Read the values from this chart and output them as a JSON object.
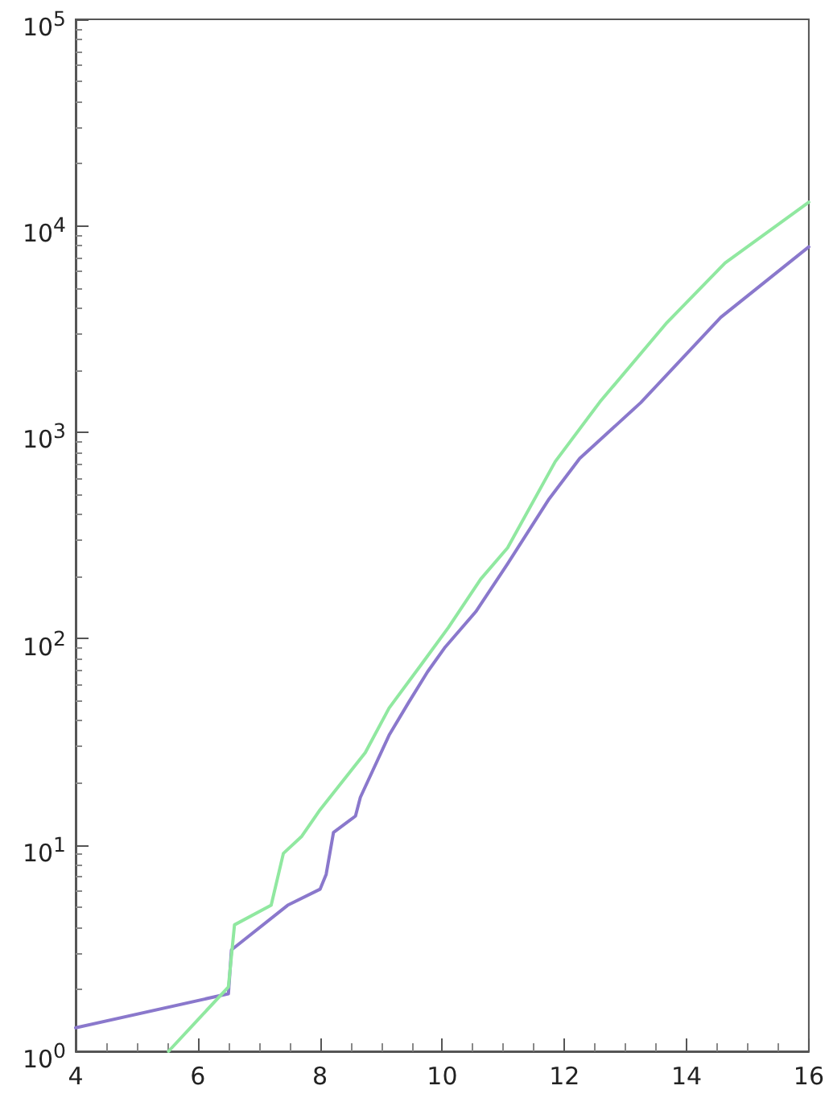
{
  "chart_data": {
    "type": "line",
    "log": "y",
    "grid": false,
    "marker": "none",
    "line_style": "solid",
    "xlim": [
      4,
      16
    ],
    "xticks": [
      4,
      6,
      8,
      10,
      12,
      14,
      16
    ],
    "ylim": [
      1,
      100000
    ],
    "yticks": [
      {
        "value": 1,
        "label": "10$^{0}$"
      },
      {
        "value": 10,
        "label": "10$^{1}$"
      },
      {
        "value": 100,
        "label": "10$^{2}$"
      },
      {
        "value": 1000,
        "label": "10$^{3}$"
      },
      {
        "value": 10000,
        "label": "10$^{4}$"
      },
      {
        "value": 100000,
        "label": "10$^{5}$"
      }
    ],
    "series": [
      {
        "color": "#8a78cc",
        "x": [
          4,
          6.5,
          6.55,
          7.47,
          8.0,
          8.1,
          8.22,
          8.58,
          8.66,
          9.13,
          9.45,
          9.76,
          10.05,
          10.55,
          11.07,
          11.75,
          12.25,
          13.25,
          14.56,
          16
        ],
        "values": [
          1.3,
          1.9,
          3.1,
          5.1,
          6.1,
          7.2,
          11.5,
          13.8,
          17,
          34,
          49,
          69,
          91,
          135,
          230,
          475,
          745,
          1390,
          3600,
          7900
        ]
      },
      {
        "color": "#90e8a0",
        "x": [
          5.52,
          6.5,
          6.6,
          7.2,
          7.4,
          7.7,
          8.0,
          8.74,
          9.13,
          9.66,
          10.1,
          10.63,
          11.07,
          11.85,
          12.58,
          13.68,
          14.63,
          16
        ],
        "values": [
          1,
          2.05,
          4.1,
          5.1,
          9.1,
          11,
          14.8,
          28,
          46,
          75,
          113,
          194,
          275,
          720,
          1400,
          3400,
          6600,
          13000
        ]
      }
    ]
  }
}
